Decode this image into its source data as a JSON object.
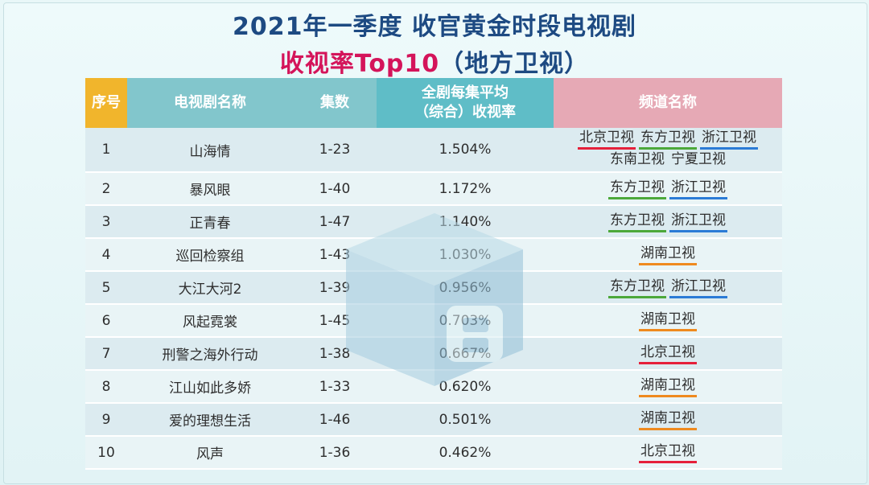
{
  "title": {
    "line1": "2021年一季度 收官黄金时段电视剧",
    "line2_red": "收视率Top10",
    "line2_blue": "（地方卫视）"
  },
  "table": {
    "headers": {
      "no": "序号",
      "name": "电视剧名称",
      "episodes": "集数",
      "rate_line1": "全剧每集平均",
      "rate_line2": "（综合）收视率",
      "channels": "频道名称"
    },
    "rows": [
      {
        "no": "1",
        "name": "山海情",
        "episodes": "1-23",
        "rate": "1.504%",
        "channels_line1": [
          "北京卫视",
          "东方卫视",
          "浙江卫视"
        ],
        "channels_line2": [
          "东南卫视",
          "宁夏卫视"
        ]
      },
      {
        "no": "2",
        "name": "暴风眼",
        "episodes": "1-40",
        "rate": "1.172%",
        "channels_line1": [
          "东方卫视",
          "浙江卫视"
        ]
      },
      {
        "no": "3",
        "name": "正青春",
        "episodes": "1-47",
        "rate": "1.140%",
        "channels_line1": [
          "东方卫视",
          "浙江卫视"
        ]
      },
      {
        "no": "4",
        "name": "巡回检察组",
        "episodes": "1-43",
        "rate": "1.030%",
        "channels_line1": [
          "湖南卫视"
        ]
      },
      {
        "no": "5",
        "name": "大江大河2",
        "episodes": "1-39",
        "rate": "0.956%",
        "channels_line1": [
          "东方卫视",
          "浙江卫视"
        ]
      },
      {
        "no": "6",
        "name": "风起霓裳",
        "episodes": "1-45",
        "rate": "0.703%",
        "channels_line1": [
          "湖南卫视"
        ]
      },
      {
        "no": "7",
        "name": "刑警之海外行动",
        "episodes": "1-38",
        "rate": "0.667%",
        "channels_line1": [
          "北京卫视"
        ]
      },
      {
        "no": "8",
        "name": "江山如此多娇",
        "episodes": "1-33",
        "rate": "0.620%",
        "channels_line1": [
          "湖南卫视"
        ]
      },
      {
        "no": "9",
        "name": "爱的理想生活",
        "episodes": "1-46",
        "rate": "0.501%",
        "channels_line1": [
          "湖南卫视"
        ]
      },
      {
        "no": "10",
        "name": "风声",
        "episodes": "1-36",
        "rate": "0.462%",
        "channels_line1": [
          "北京卫视"
        ]
      }
    ]
  },
  "channel_colors": {
    "北京卫视": "#e5203a",
    "东方卫视": "#4ca83a",
    "浙江卫视": "#2b7bd6",
    "湖南卫视": "#ef8a1f",
    "东南卫视": "none",
    "宁夏卫视": "none"
  },
  "colors": {
    "title_blue": "#1d4a82",
    "title_red": "#d4145a",
    "header_no": "#f1b52c",
    "header_teal": "#82c6cc",
    "header_rate": "#5fbdc7",
    "header_pink": "#e6a9b5"
  },
  "watermark_icon": "cube-logo-icon"
}
